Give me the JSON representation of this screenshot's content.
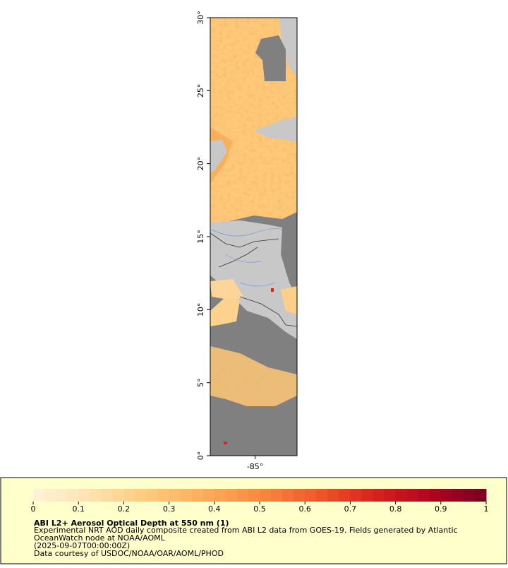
{
  "map": {
    "lat_range": [
      0,
      30
    ],
    "lon_range": [
      -88.1,
      -82.1
    ],
    "lat_ticks": [
      {
        "value": 0,
        "label": "0°"
      },
      {
        "value": 5,
        "label": "5°"
      },
      {
        "value": 10,
        "label": "10°"
      },
      {
        "value": 15,
        "label": "15°"
      },
      {
        "value": 20,
        "label": "20°"
      },
      {
        "value": 25,
        "label": "25°"
      },
      {
        "value": 30,
        "label": "30°"
      }
    ],
    "lon_ticks": [
      {
        "value": -85,
        "label": "-85°"
      }
    ]
  },
  "colorbar": {
    "lim": [
      0,
      1
    ],
    "ticks": [
      0,
      0.1,
      0.2,
      0.3,
      0.4,
      0.5,
      0.6,
      0.7,
      0.8,
      0.9,
      1
    ],
    "colors": [
      "#fff3d8",
      "#fee2b0",
      "#fdcb7c",
      "#fcae5c",
      "#f98a40",
      "#ef5a2a",
      "#d8241e",
      "#b0061f",
      "#7a0022"
    ]
  },
  "caption": {
    "title": "ABI L2+ Aerosol Optical Depth at 550 nm (1)",
    "lines": [
      "Experimental NRT AOD daily composite created from ABI L2 data from GOES-19. Fields generated by Atlantic",
      "OceanWatch node at NOAA/AOML",
      "(2025-09-07T00:00:00Z)",
      "Data courtesy of USDOC/NOAA/OAR/AOML/PHOD"
    ]
  }
}
